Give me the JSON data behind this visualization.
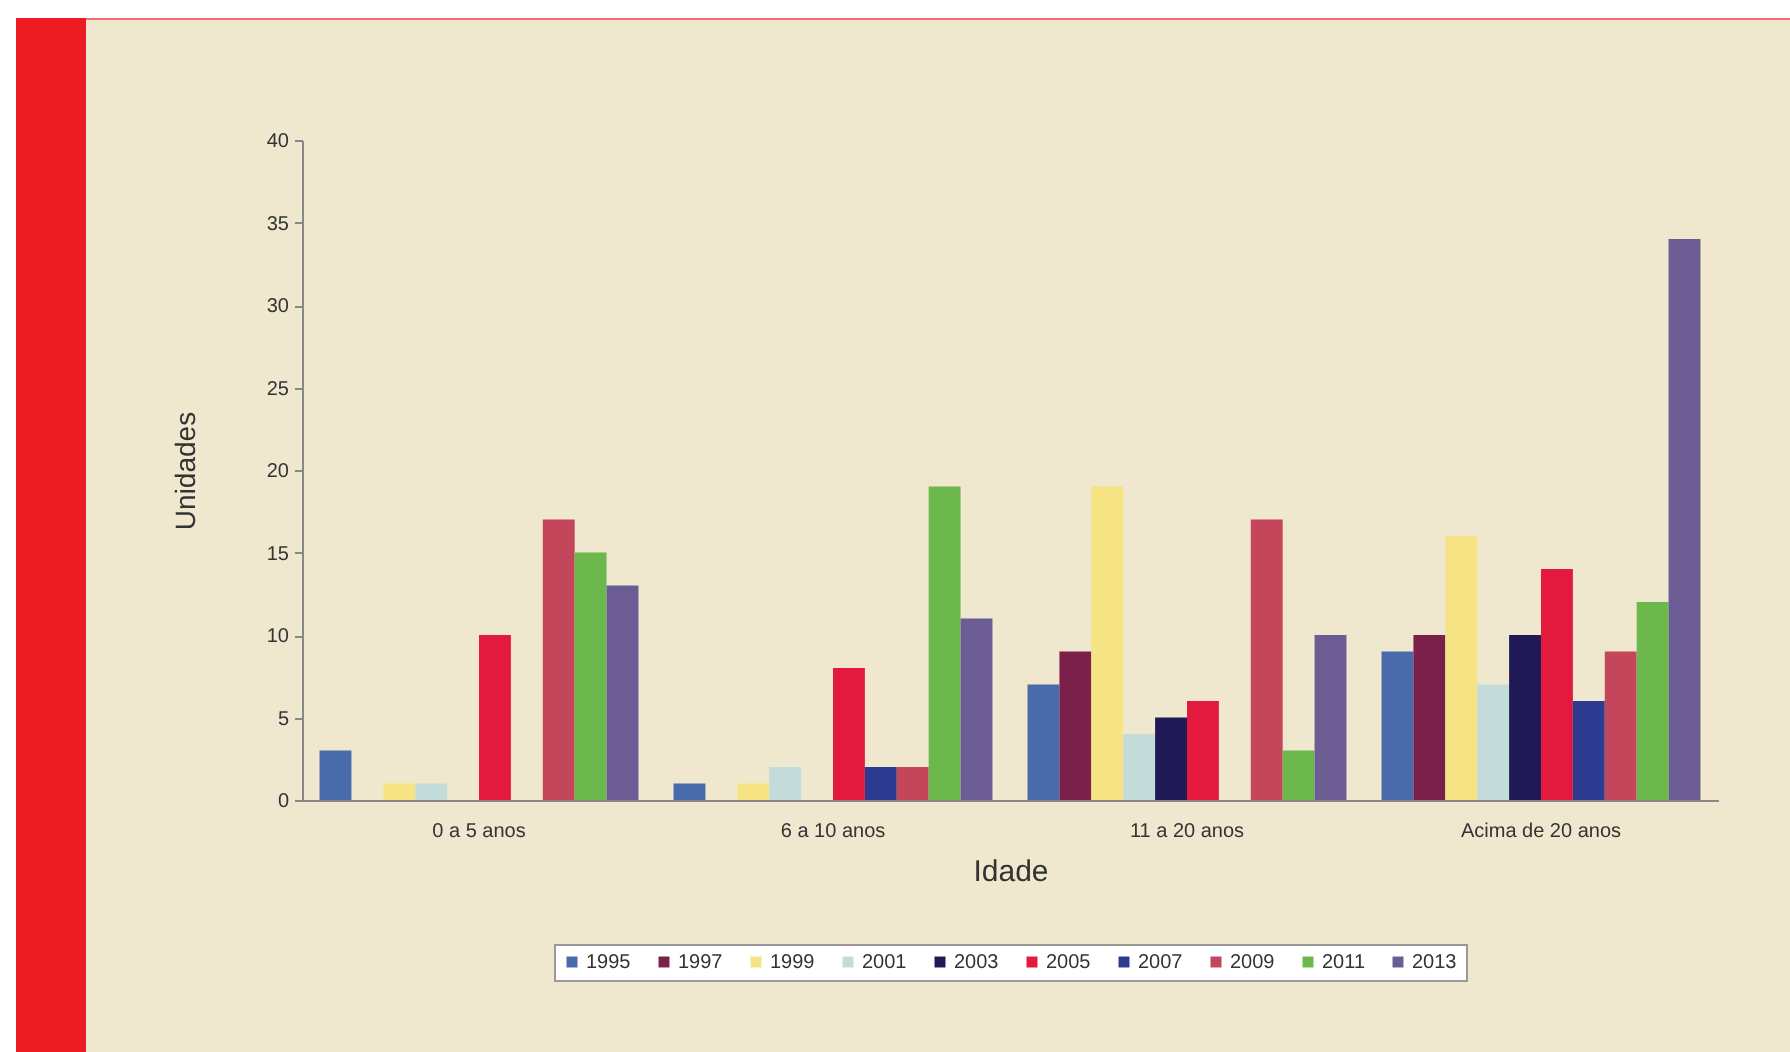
{
  "chart_data": {
    "type": "bar",
    "xlabel": "Idade",
    "ylabel": "Unidades",
    "categories": [
      "0 a 5 anos",
      "6 a 10 anos",
      "11 a 20 anos",
      "Acima de 20 anos"
    ],
    "series": [
      {
        "name": "1995",
        "color": "#4a6bab",
        "values": [
          3,
          1,
          7,
          9
        ]
      },
      {
        "name": "1997",
        "color": "#7b2149",
        "values": [
          0,
          0,
          9,
          10
        ]
      },
      {
        "name": "1999",
        "color": "#f6e384",
        "values": [
          1,
          1,
          19,
          16
        ]
      },
      {
        "name": "2001",
        "color": "#c3dcd9",
        "values": [
          1,
          2,
          4,
          7
        ]
      },
      {
        "name": "2003",
        "color": "#1f1a55",
        "values": [
          0,
          0,
          5,
          10
        ]
      },
      {
        "name": "2005",
        "color": "#e3193d",
        "values": [
          10,
          8,
          6,
          14
        ]
      },
      {
        "name": "2007",
        "color": "#2c3a8f",
        "values": [
          0,
          2,
          0,
          6
        ]
      },
      {
        "name": "2009",
        "color": "#c4465b",
        "values": [
          17,
          2,
          17,
          9
        ]
      },
      {
        "name": "2011",
        "color": "#6db84d",
        "values": [
          15,
          19,
          3,
          12
        ]
      },
      {
        "name": "2013",
        "color": "#6b5d94",
        "values": [
          13,
          11,
          10,
          34
        ]
      }
    ],
    "ylim": [
      0,
      40
    ],
    "yticks": [
      0,
      5,
      10,
      15,
      20,
      25,
      30,
      35,
      40
    ],
    "legend": "bottom"
  }
}
